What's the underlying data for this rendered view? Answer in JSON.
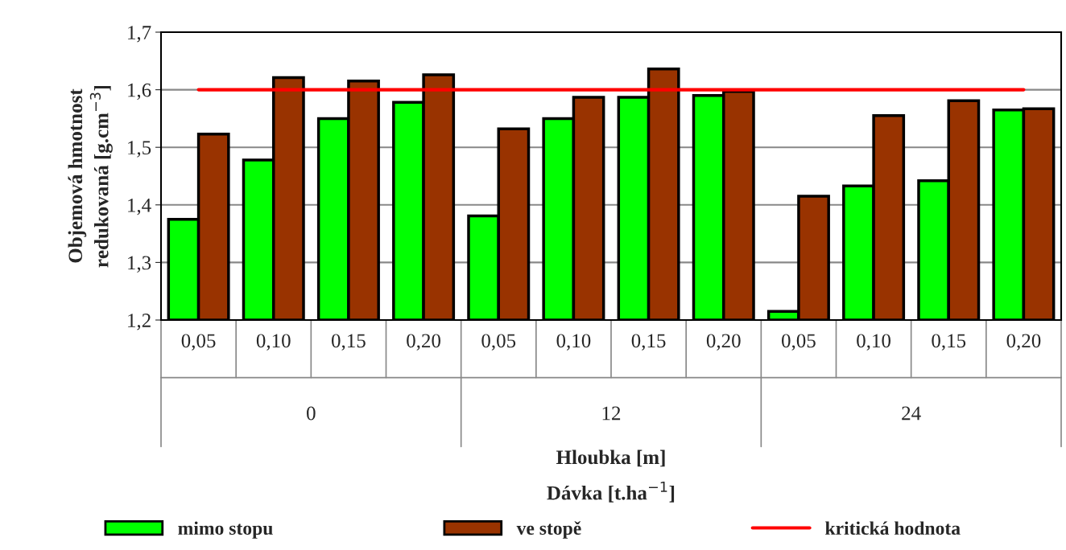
{
  "chart_data": {
    "type": "bar",
    "categories": [
      "0,05",
      "0,10",
      "0,15",
      "0,20",
      "0,05",
      "0,10",
      "0,15",
      "0,20",
      "0,05",
      "0,10",
      "0,15",
      "0,20"
    ],
    "series": [
      {
        "name": "mimo stopu",
        "color": "#00ff00",
        "values": [
          1.375,
          1.478,
          1.55,
          1.578,
          1.381,
          1.55,
          1.587,
          1.59,
          1.215,
          1.433,
          1.442,
          1.565
        ]
      },
      {
        "name": "ve stopě",
        "color": "#993300",
        "values": [
          1.523,
          1.621,
          1.615,
          1.626,
          1.532,
          1.587,
          1.636,
          1.597,
          1.415,
          1.555,
          1.581,
          1.567
        ]
      },
      {
        "name": "kritická hodnota",
        "type": "line",
        "color": "#ff0000",
        "values": [
          1.6,
          1.6,
          1.6,
          1.6,
          1.6,
          1.6,
          1.6,
          1.6,
          1.6,
          1.6,
          1.6,
          1.6
        ]
      }
    ],
    "annotations": [
      "0",
      "12",
      "24"
    ],
    "xlabel": "Hloubka [m]\nDávka [t.ha$^{−1}$]",
    "ylabel": "Objemová hmotnost\nredukovaná [g.cm$^{−3}$]",
    "ylim": [
      1.2,
      1.7
    ],
    "yticks": [
      {
        "value": 1.2,
        "label": "1,2"
      },
      {
        "value": 1.3,
        "label": "1,3"
      },
      {
        "value": 1.4,
        "label": "1,4"
      },
      {
        "value": 1.5,
        "label": "1,5"
      },
      {
        "value": 1.6,
        "label": "1,6"
      },
      {
        "value": 1.7,
        "label": "1,7"
      }
    ],
    "grid": "y",
    "legend": "bottom"
  }
}
